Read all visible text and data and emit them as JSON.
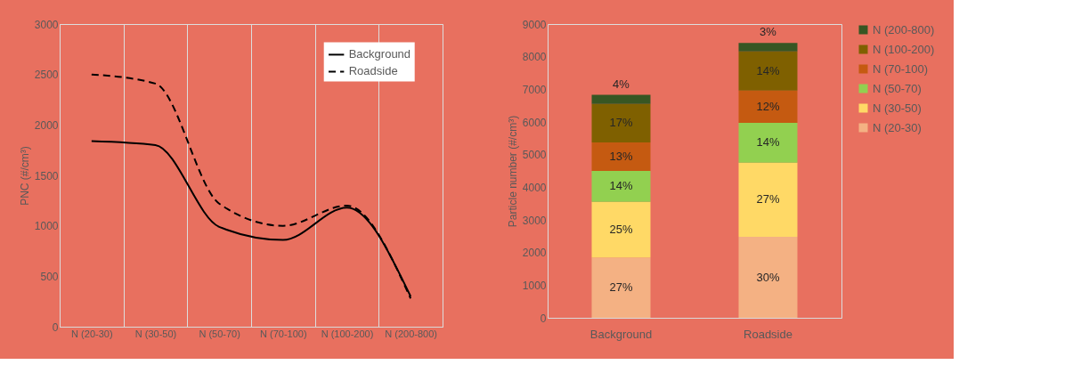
{
  "chart_data": [
    {
      "type": "line",
      "ylabel": "PNC (#/cm³)",
      "categories": [
        "N (20-30)",
        "N (30-50)",
        "N (50-70)",
        "N (70-100)",
        "N (100-200)",
        "N (200-800)"
      ],
      "ylim": [
        0,
        3000
      ],
      "yticks": [
        0,
        500,
        1000,
        1500,
        2000,
        2500,
        3000
      ],
      "grid": "x",
      "legend": "top right",
      "marker": "none",
      "series": [
        {
          "name": "Background",
          "color": "#000000",
          "line_style": "solid",
          "values": [
            1840,
            1800,
            990,
            860,
            1180,
            300
          ]
        },
        {
          "name": "Roadside",
          "color": "#000000",
          "line_style": "dashed",
          "values": [
            2500,
            2410,
            1220,
            1000,
            1200,
            280
          ]
        }
      ]
    },
    {
      "type": "bar",
      "stacked": true,
      "ylabel": "Particle number (#/cm³)",
      "categories": [
        "Background",
        "Roadside"
      ],
      "ylim": [
        0,
        9000
      ],
      "yticks": [
        0,
        1000,
        2000,
        3000,
        4000,
        5000,
        6000,
        7000,
        8000,
        9000
      ],
      "grid": false,
      "legend": "right",
      "series": [
        {
          "name": "N (20-30)",
          "color": "#f4b183",
          "values": [
            1850,
            2480
          ]
        },
        {
          "name": "N (30-50)",
          "color": "#ffd966",
          "values": [
            1700,
            2270
          ]
        },
        {
          "name": "N (50-70)",
          "color": "#92d050",
          "values": [
            950,
            1220
          ]
        },
        {
          "name": "N (70-100)",
          "color": "#c55a11",
          "values": [
            870,
            990
          ]
        },
        {
          "name": "N (100-200)",
          "color": "#7f6000",
          "values": [
            1180,
            1200
          ]
        },
        {
          "name": "N (200-800)",
          "color": "#375623",
          "values": [
            280,
            260
          ]
        }
      ],
      "annotations": [
        "27%",
        "25%",
        "14%",
        "13%",
        "17%",
        "4%",
        "30%",
        "27%",
        "14%",
        "12%",
        "14%",
        "3%"
      ]
    }
  ]
}
